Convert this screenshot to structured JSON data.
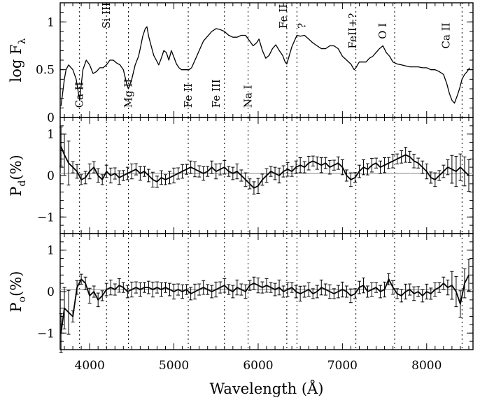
{
  "chart_data": {
    "type": "line",
    "xlabel": "Wavelength (Å)",
    "xlim": [
      3650,
      8550
    ],
    "x_ticks": [
      4000,
      5000,
      6000,
      7000,
      8000
    ],
    "x_tick_labels": [
      "4000",
      "5000",
      "6000",
      "7000",
      "8000"
    ],
    "line_markers_x": [
      3880,
      4200,
      4460,
      5170,
      5600,
      5880,
      6340,
      6460,
      7160,
      7620,
      8420
    ],
    "panels": [
      {
        "id": "flux",
        "ylabel_main": "log F",
        "ylabel_sub": "λ",
        "ylim": [
          0,
          1.2
        ],
        "y_ticks": [
          0,
          0.5,
          1
        ],
        "y_tick_labels": [
          "0",
          "0.5",
          "1"
        ],
        "line_labels": [
          {
            "text": "Ca II",
            "x": 3880,
            "y": 0.1
          },
          {
            "text": "Si III",
            "x": 4200,
            "y": 0.93
          },
          {
            "text": "Mg II",
            "x": 4460,
            "y": 0.1
          },
          {
            "text": "Fe II",
            "x": 5170,
            "y": 0.1
          },
          {
            "text": "Fe III",
            "x": 5500,
            "y": 0.1
          },
          {
            "text": "Na I",
            "x": 5880,
            "y": 0.1
          },
          {
            "text": "Fe II",
            "x": 6300,
            "y": 0.93
          },
          {
            "text": "?",
            "x": 6520,
            "y": 0.93
          },
          {
            "text": "FeII+?",
            "x": 7120,
            "y": 0.72
          },
          {
            "text": "O I",
            "x": 7480,
            "y": 0.82
          },
          {
            "text": "Ca II",
            "x": 8230,
            "y": 0.72
          }
        ],
        "series": {
          "name": "log F_lambda",
          "x": [
            3660,
            3700,
            3720,
            3750,
            3800,
            3840,
            3880,
            3920,
            3960,
            4000,
            4040,
            4080,
            4120,
            4160,
            4200,
            4240,
            4280,
            4320,
            4360,
            4400,
            4440,
            4460,
            4500,
            4540,
            4580,
            4600,
            4630,
            4660,
            4680,
            4700,
            4730,
            4760,
            4790,
            4820,
            4850,
            4880,
            4910,
            4940,
            4970,
            5000,
            5030,
            5060,
            5090,
            5120,
            5150,
            5180,
            5210,
            5250,
            5300,
            5350,
            5400,
            5450,
            5500,
            5550,
            5600,
            5650,
            5700,
            5750,
            5800,
            5850,
            5900,
            5940,
            5980,
            6010,
            6050,
            6090,
            6130,
            6170,
            6210,
            6250,
            6290,
            6320,
            6340,
            6370,
            6400,
            6430,
            6460,
            6500,
            6550,
            6600,
            6650,
            6700,
            6750,
            6800,
            6850,
            6900,
            6950,
            7000,
            7050,
            7100,
            7140,
            7160,
            7200,
            7240,
            7280,
            7320,
            7360,
            7400,
            7440,
            7480,
            7520,
            7560,
            7600,
            7650,
            7700,
            7750,
            7800,
            7850,
            7900,
            7950,
            8000,
            8050,
            8100,
            8150,
            8200,
            8240,
            8270,
            8300,
            8330,
            8360,
            8390,
            8420,
            8450,
            8480,
            8510
          ],
          "y": [
            0.12,
            0.4,
            0.5,
            0.55,
            0.5,
            0.4,
            0.18,
            0.5,
            0.6,
            0.55,
            0.46,
            0.48,
            0.52,
            0.52,
            0.55,
            0.6,
            0.6,
            0.57,
            0.55,
            0.5,
            0.35,
            0.3,
            0.4,
            0.55,
            0.64,
            0.72,
            0.85,
            0.93,
            0.95,
            0.85,
            0.75,
            0.65,
            0.6,
            0.55,
            0.62,
            0.7,
            0.68,
            0.6,
            0.7,
            0.63,
            0.56,
            0.52,
            0.5,
            0.5,
            0.5,
            0.5,
            0.52,
            0.6,
            0.7,
            0.8,
            0.85,
            0.9,
            0.93,
            0.92,
            0.9,
            0.86,
            0.84,
            0.84,
            0.86,
            0.86,
            0.8,
            0.75,
            0.78,
            0.82,
            0.7,
            0.62,
            0.65,
            0.72,
            0.76,
            0.7,
            0.65,
            0.58,
            0.56,
            0.65,
            0.74,
            0.8,
            0.86,
            0.85,
            0.86,
            0.82,
            0.78,
            0.75,
            0.72,
            0.72,
            0.75,
            0.75,
            0.72,
            0.64,
            0.6,
            0.56,
            0.5,
            0.52,
            0.58,
            0.58,
            0.58,
            0.62,
            0.64,
            0.68,
            0.72,
            0.75,
            0.68,
            0.64,
            0.58,
            0.56,
            0.55,
            0.54,
            0.53,
            0.53,
            0.53,
            0.52,
            0.52,
            0.5,
            0.5,
            0.48,
            0.45,
            0.35,
            0.25,
            0.18,
            0.15,
            0.22,
            0.3,
            0.4,
            0.45,
            0.48,
            0.52
          ]
        }
      },
      {
        "id": "pd",
        "ylabel_main": "P",
        "ylabel_sub": "d",
        "ylabel_suffix": "(%)",
        "ylim": [
          -1.4,
          1.4
        ],
        "y_ticks": [
          -1,
          0,
          1
        ],
        "y_tick_labels": [
          "−1",
          "0",
          "1"
        ],
        "reference_line": 0.05,
        "series": {
          "name": "P_d",
          "x": [
            3660,
            3700,
            3750,
            3800,
            3850,
            3900,
            3950,
            4000,
            4050,
            4100,
            4150,
            4200,
            4250,
            4300,
            4350,
            4400,
            4450,
            4500,
            4550,
            4600,
            4650,
            4700,
            4750,
            4800,
            4850,
            4900,
            4950,
            5000,
            5050,
            5100,
            5150,
            5200,
            5250,
            5300,
            5350,
            5400,
            5450,
            5500,
            5550,
            5600,
            5650,
            5700,
            5750,
            5800,
            5850,
            5900,
            5950,
            6000,
            6050,
            6100,
            6150,
            6200,
            6250,
            6300,
            6350,
            6400,
            6450,
            6500,
            6550,
            6600,
            6650,
            6700,
            6750,
            6800,
            6850,
            6900,
            6950,
            7000,
            7050,
            7100,
            7150,
            7200,
            7250,
            7300,
            7350,
            7400,
            7450,
            7500,
            7550,
            7600,
            7650,
            7700,
            7750,
            7800,
            7850,
            7900,
            7950,
            8000,
            8050,
            8100,
            8150,
            8200,
            8250,
            8300,
            8350,
            8400,
            8450,
            8500
          ],
          "y": [
            0.7,
            0.5,
            0.3,
            0.2,
            0.1,
            -0.1,
            -0.05,
            0.1,
            0.2,
            0.0,
            -0.1,
            0.1,
            0.0,
            0.05,
            -0.05,
            0.0,
            0.05,
            0.1,
            0.15,
            0.05,
            0.1,
            0.0,
            -0.1,
            -0.15,
            -0.05,
            -0.1,
            -0.05,
            0.0,
            0.05,
            0.1,
            0.15,
            0.2,
            0.15,
            0.1,
            0.05,
            0.1,
            0.2,
            0.1,
            0.15,
            0.2,
            0.1,
            0.05,
            0.1,
            0.0,
            -0.1,
            -0.2,
            -0.3,
            -0.25,
            -0.1,
            0.0,
            0.1,
            0.05,
            0.0,
            0.1,
            0.15,
            0.1,
            0.2,
            0.25,
            0.2,
            0.3,
            0.35,
            0.3,
            0.25,
            0.3,
            0.2,
            0.25,
            0.3,
            0.2,
            0.0,
            -0.1,
            -0.05,
            0.1,
            0.2,
            0.15,
            0.25,
            0.3,
            0.2,
            0.25,
            0.3,
            0.35,
            0.4,
            0.45,
            0.5,
            0.45,
            0.35,
            0.3,
            0.2,
            0.1,
            -0.05,
            -0.1,
            0.0,
            0.1,
            0.2,
            0.15,
            0.1,
            0.2,
            0.1,
            0.0
          ]
        }
      },
      {
        "id": "po",
        "ylabel_main": "P",
        "ylabel_sub": "o",
        "ylabel_suffix": "(%)",
        "ylim": [
          -1.4,
          1.4
        ],
        "y_ticks": [
          -1,
          0,
          1
        ],
        "y_tick_labels": [
          "−1",
          "0",
          "1"
        ],
        "reference_line": 0.05,
        "series": {
          "name": "P_o",
          "x": [
            3660,
            3700,
            3750,
            3800,
            3850,
            3900,
            3950,
            4000,
            4050,
            4100,
            4150,
            4200,
            4250,
            4300,
            4350,
            4400,
            4450,
            4500,
            4550,
            4600,
            4650,
            4700,
            4750,
            4800,
            4850,
            4900,
            4950,
            5000,
            5050,
            5100,
            5150,
            5200,
            5250,
            5300,
            5350,
            5400,
            5450,
            5500,
            5550,
            5600,
            5650,
            5700,
            5750,
            5800,
            5850,
            5900,
            5950,
            6000,
            6050,
            6100,
            6150,
            6200,
            6250,
            6300,
            6350,
            6400,
            6450,
            6500,
            6550,
            6600,
            6650,
            6700,
            6750,
            6800,
            6850,
            6900,
            6950,
            7000,
            7050,
            7100,
            7150,
            7200,
            7250,
            7300,
            7350,
            7400,
            7450,
            7500,
            7550,
            7600,
            7650,
            7700,
            7750,
            7800,
            7850,
            7900,
            7950,
            8000,
            8050,
            8100,
            8150,
            8200,
            8250,
            8300,
            8350,
            8400,
            8450,
            8500
          ],
          "y": [
            -1.0,
            -0.4,
            -0.5,
            -0.6,
            0.1,
            0.3,
            0.2,
            -0.1,
            0.0,
            -0.2,
            -0.1,
            0.05,
            0.1,
            0.05,
            0.15,
            0.1,
            0.0,
            0.05,
            0.1,
            0.05,
            0.1,
            0.1,
            0.05,
            0.1,
            0.05,
            0.1,
            0.05,
            0.0,
            0.05,
            0.0,
            0.05,
            -0.05,
            0.0,
            0.05,
            0.1,
            0.05,
            0.0,
            0.05,
            0.1,
            0.15,
            0.05,
            0.0,
            0.1,
            0.05,
            0.0,
            0.15,
            0.2,
            0.15,
            0.1,
            0.15,
            0.1,
            0.05,
            0.1,
            0.0,
            0.05,
            0.1,
            0.0,
            -0.05,
            0.0,
            0.05,
            -0.05,
            0.0,
            0.1,
            0.05,
            0.0,
            -0.05,
            0.0,
            0.05,
            0.0,
            -0.1,
            -0.05,
            0.1,
            0.15,
            0.0,
            0.05,
            0.1,
            0.0,
            0.05,
            0.3,
            0.1,
            -0.05,
            -0.1,
            0.0,
            0.05,
            -0.05,
            0.0,
            -0.1,
            0.0,
            -0.05,
            0.05,
            0.1,
            0.2,
            0.1,
            0.15,
            0.0,
            -0.3,
            0.2,
            0.4
          ]
        }
      }
    ]
  }
}
